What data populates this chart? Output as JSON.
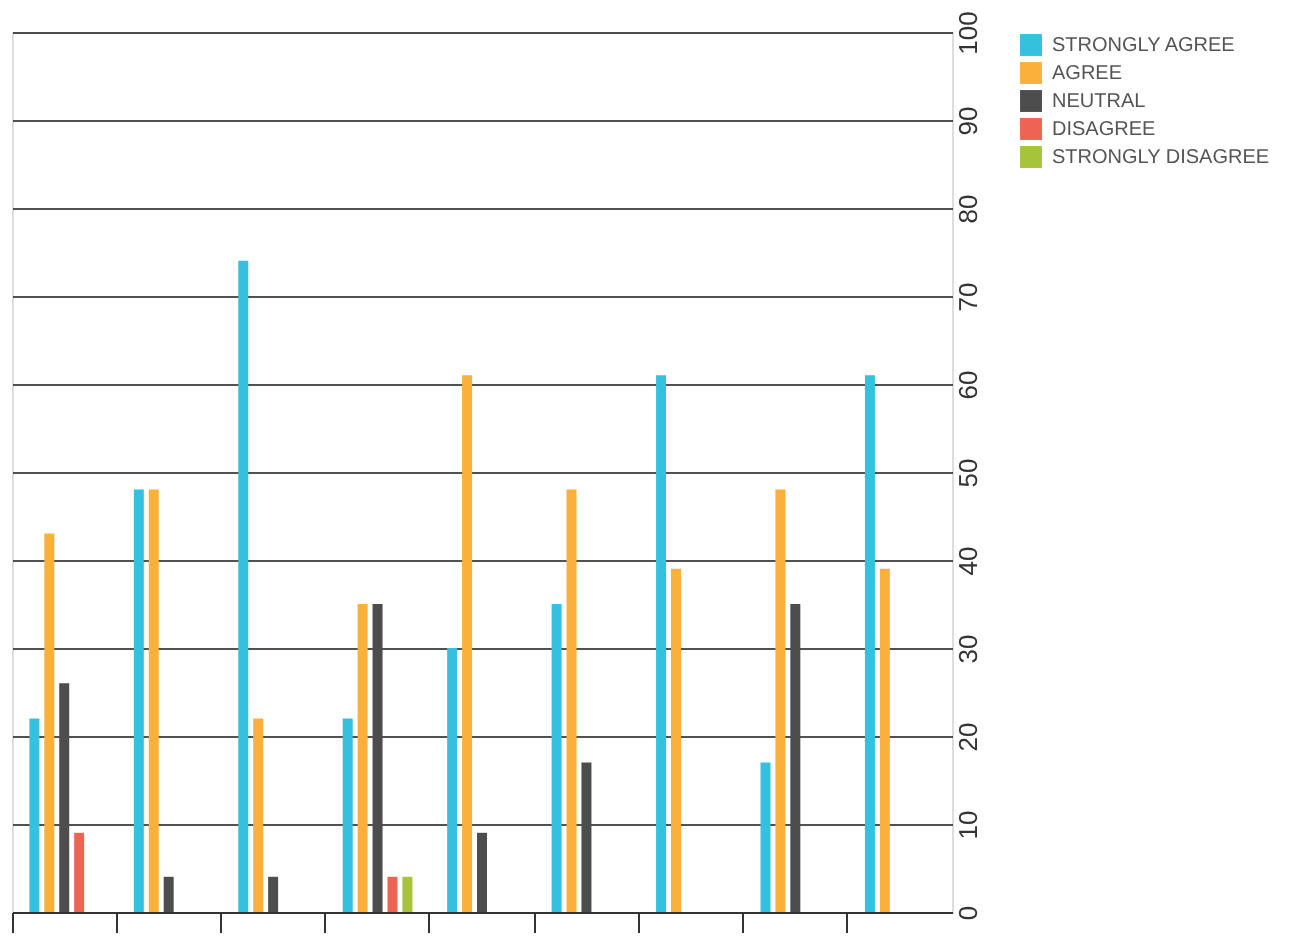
{
  "chart_data": {
    "type": "bar",
    "categories": [
      null,
      null,
      null,
      null,
      null,
      null,
      null,
      null,
      null
    ],
    "series": [
      {
        "name": "STRONGLY AGREE",
        "color": "#35c0e0",
        "values": [
          22,
          48,
          74,
          22,
          30,
          35,
          61,
          17,
          61
        ]
      },
      {
        "name": "AGREE",
        "color": "#fbb03b",
        "values": [
          43,
          48,
          22,
          35,
          61,
          48,
          39,
          48,
          39
        ]
      },
      {
        "name": "NEUTRAL",
        "color": "#4d4d4d",
        "values": [
          26,
          4,
          4,
          35,
          9,
          17,
          null,
          35,
          null
        ]
      },
      {
        "name": "DISAGREE",
        "color": "#ee6352",
        "values": [
          9,
          null,
          null,
          4,
          null,
          null,
          null,
          null,
          null
        ]
      },
      {
        "name": "STRONGLY DISAGREE",
        "color": "#a5c43b",
        "values": [
          null,
          null,
          null,
          4,
          null,
          null,
          null,
          null,
          null
        ]
      }
    ],
    "ylim": [
      0,
      100
    ],
    "yticks": [
      0,
      10,
      20,
      30,
      40,
      50,
      60,
      70,
      80,
      90,
      100
    ],
    "grid": "y",
    "legend": "right",
    "tick_labels": "y"
  }
}
